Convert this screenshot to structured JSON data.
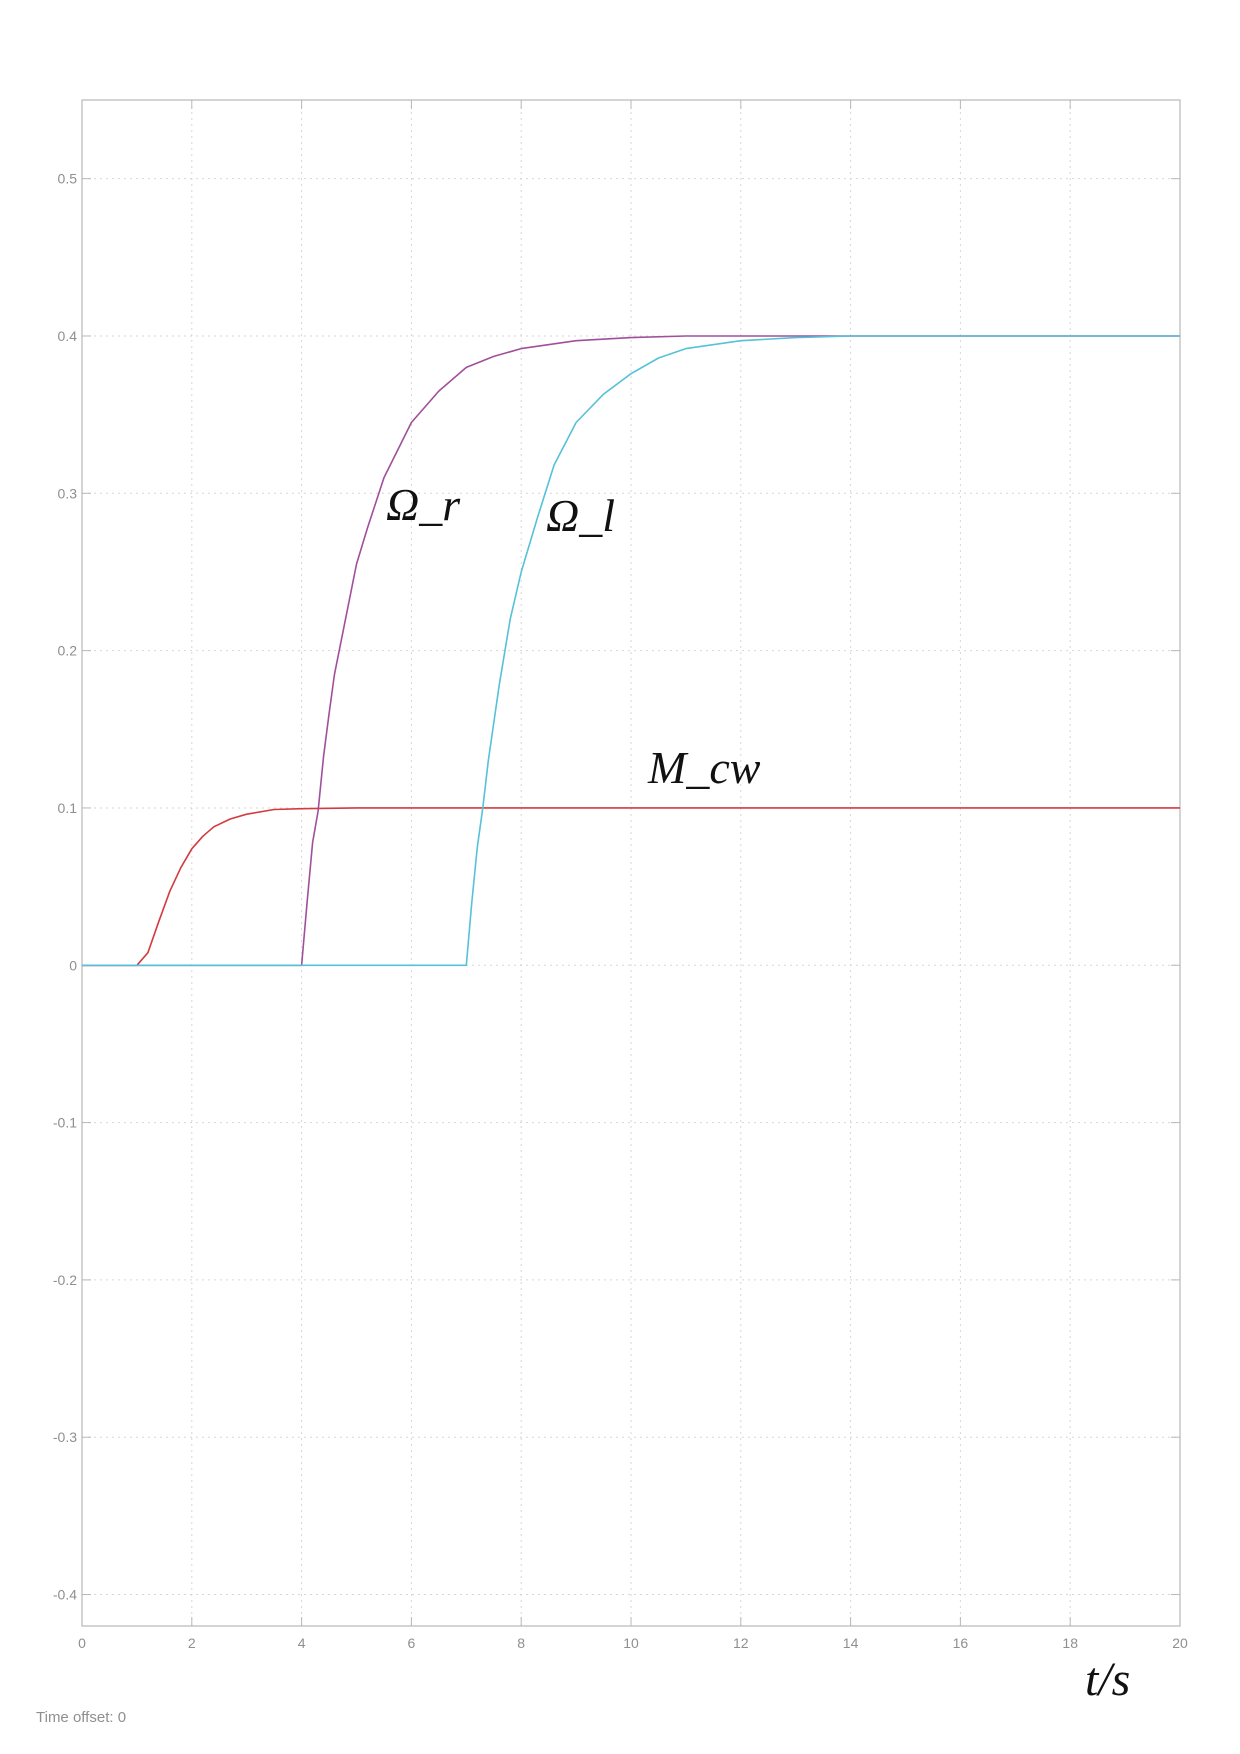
{
  "chart_data": {
    "type": "line",
    "title": "",
    "xlabel": "t/s",
    "ylabel": "",
    "xlim": [
      0,
      20
    ],
    "ylim": [
      -0.42,
      0.55
    ],
    "x_ticks": [
      0,
      2,
      4,
      6,
      8,
      10,
      12,
      14,
      16,
      18,
      20
    ],
    "y_ticks": [
      -0.4,
      -0.3,
      -0.2,
      -0.1,
      0,
      0.1,
      0.2,
      0.3,
      0.4,
      0.5
    ],
    "x_tick_labels": [
      "0",
      "2",
      "4",
      "6",
      "8",
      "10",
      "12",
      "14",
      "16",
      "18",
      "20"
    ],
    "y_tick_labels": [
      "-0.4",
      "-0.3",
      "-0.2",
      "-0.1",
      "0",
      "0.1",
      "0.2",
      "0.3",
      "0.4",
      "0.5"
    ],
    "grid": true,
    "series": [
      {
        "name": "Ω_r",
        "color": "#a0509a",
        "x": [
          0,
          4,
          4.1,
          4.2,
          4.3,
          4.4,
          4.5,
          4.6,
          4.8,
          5,
          5.2,
          5.5,
          6,
          6.5,
          7,
          7.5,
          8,
          9,
          10,
          11,
          12,
          14,
          20
        ],
        "y": [
          0,
          0,
          0.04,
          0.078,
          0.098,
          0.133,
          0.16,
          0.185,
          0.22,
          0.255,
          0.278,
          0.31,
          0.345,
          0.365,
          0.38,
          0.387,
          0.392,
          0.397,
          0.399,
          0.4,
          0.4,
          0.4,
          0.4
        ]
      },
      {
        "name": "Ω_l",
        "color": "#56c1d8",
        "x": [
          0,
          7,
          7.1,
          7.2,
          7.3,
          7.4,
          7.6,
          7.8,
          8,
          8.3,
          8.6,
          9,
          9.5,
          10,
          10.5,
          11,
          12,
          13,
          14,
          20
        ],
        "y": [
          0,
          0,
          0.04,
          0.075,
          0.1,
          0.13,
          0.178,
          0.22,
          0.25,
          0.285,
          0.318,
          0.345,
          0.363,
          0.376,
          0.386,
          0.392,
          0.397,
          0.399,
          0.4,
          0.4
        ]
      },
      {
        "name": "M_cw",
        "color": "#d43a3f",
        "x": [
          0,
          1,
          1.2,
          1.4,
          1.6,
          1.8,
          2,
          2.2,
          2.4,
          2.7,
          3,
          3.5,
          4,
          5,
          6,
          20
        ],
        "y": [
          0,
          0,
          0.008,
          0.028,
          0.047,
          0.062,
          0.074,
          0.082,
          0.088,
          0.093,
          0.096,
          0.099,
          0.0995,
          0.1,
          0.1,
          0.1
        ]
      }
    ],
    "annotations": {
      "omega_r": "Ω_r",
      "omega_l": "Ω_l",
      "m_cw": "M_cw"
    }
  },
  "footer": {
    "time_offset": "Time offset: 0"
  }
}
